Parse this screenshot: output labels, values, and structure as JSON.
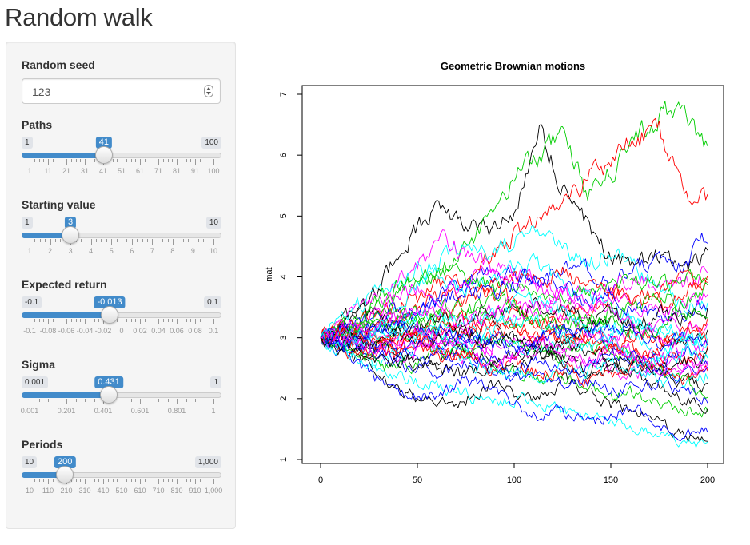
{
  "page": {
    "title": "Random walk"
  },
  "controls": {
    "seed": {
      "label": "Random seed",
      "value": "123"
    },
    "paths": {
      "label": "Paths",
      "min_label": "1",
      "max_label": "100",
      "value_label": "41",
      "min": 1,
      "max": 100,
      "value": 41,
      "grid": [
        "1",
        "11",
        "21",
        "31",
        "41",
        "51",
        "61",
        "71",
        "81",
        "91",
        "100"
      ]
    },
    "starting": {
      "label": "Starting value",
      "min_label": "1",
      "max_label": "10",
      "value_label": "3",
      "min": 1,
      "max": 10,
      "value": 3,
      "grid": [
        "1",
        "2",
        "3",
        "4",
        "5",
        "6",
        "7",
        "8",
        "9",
        "10"
      ]
    },
    "expected": {
      "label": "Expected return",
      "min_label": "-0.1",
      "max_label": "0.1",
      "value_label": "-0.013",
      "min": -0.1,
      "max": 0.1,
      "value": -0.013,
      "grid": [
        "-0.1",
        "-0.08",
        "-0.06",
        "-0.04",
        "-0.02",
        "0",
        "0.02",
        "0.04",
        "0.06",
        "0.08",
        "0.1"
      ]
    },
    "sigma": {
      "label": "Sigma",
      "min_label": "0.001",
      "max_label": "1",
      "value_label": "0.431",
      "min": 0.001,
      "max": 1,
      "value": 0.431,
      "grid": [
        "0.001",
        "0.201",
        "0.401",
        "0.601",
        "0.801",
        "1"
      ]
    },
    "periods": {
      "label": "Periods",
      "min_label": "10",
      "max_label": "1,000",
      "value_label": "200",
      "min": 10,
      "max": 1000,
      "value": 200,
      "grid": [
        "10",
        "110",
        "210",
        "310",
        "410",
        "510",
        "610",
        "710",
        "810",
        "910",
        "1,000"
      ]
    }
  },
  "chart_data": {
    "type": "line",
    "title": "Geometric Brownian motions",
    "xlabel": "",
    "ylabel": "mat",
    "xlim": [
      0,
      200
    ],
    "ylim": [
      1,
      7
    ],
    "x_ticks": [
      "0",
      "50",
      "100",
      "150",
      "200"
    ],
    "y_ticks": [
      "1",
      "2",
      "3",
      "4",
      "5",
      "6",
      "7"
    ],
    "n_paths": 41,
    "start_value": 3,
    "periods": 200,
    "colors": [
      "#000000",
      "#df536b",
      "#61d04f",
      "#2297e6",
      "#28e2e5",
      "#cd0bbc",
      "#f5c710",
      "#9e9e9e"
    ],
    "plot_colors": [
      "#000000",
      "#ff0000",
      "#00cd00",
      "#0000ff",
      "#00ffff",
      "#ff00ff"
    ],
    "series": [
      {
        "color": "#000000",
        "values": [
          3,
          3.3,
          3.6,
          4.2,
          4.8,
          5.2,
          4.9,
          4.7,
          5.0,
          6.45,
          5.5,
          4.9,
          4.3,
          4.2,
          4.4,
          4.1,
          4.4
        ]
      },
      {
        "color": "#00cd00",
        "values": [
          3,
          3.2,
          3.4,
          3.7,
          3.9,
          4.1,
          4.5,
          5.0,
          5.6,
          6.0,
          6.3,
          5.4,
          5.7,
          6.3,
          6.6,
          6.85,
          6.05
        ]
      },
      {
        "color": "#ff0000",
        "values": [
          3,
          3.1,
          3.3,
          3.5,
          3.6,
          3.9,
          4.0,
          4.3,
          4.7,
          5.0,
          5.2,
          5.6,
          5.9,
          6.3,
          6.4,
          5.4,
          5.3
        ]
      },
      {
        "color": "#00ffff",
        "values": [
          3,
          2.9,
          3.1,
          3.4,
          3.9,
          4.3,
          4.6,
          4.4,
          4.6,
          4.8,
          4.5,
          4.2,
          4.4,
          4.1,
          3.8,
          3.6,
          3.5
        ]
      },
      {
        "color": "#0000ff",
        "values": [
          3,
          3.1,
          3.3,
          3.2,
          3.4,
          3.7,
          3.9,
          4.1,
          4.0,
          3.9,
          4.2,
          4.1,
          3.9,
          4.1,
          4.3,
          4.2,
          4.7
        ]
      },
      {
        "color": "#ff00ff",
        "values": [
          3,
          3.3,
          3.5,
          3.8,
          4.2,
          4.6,
          4.4,
          4.2,
          4.1,
          3.9,
          3.8,
          3.7,
          3.9,
          4.0,
          3.8,
          3.9,
          4.1
        ]
      },
      {
        "color": "#000000",
        "values": [
          3,
          2.8,
          2.5,
          2.2,
          2.0,
          1.9,
          2.0,
          2.2,
          2.1,
          2.0,
          2.3,
          2.1,
          1.9,
          1.8,
          1.6,
          1.4,
          1.3
        ]
      },
      {
        "color": "#ff0000",
        "values": [
          3,
          3.2,
          3.0,
          2.8,
          2.9,
          3.1,
          3.3,
          3.2,
          3.4,
          3.2,
          3.3,
          3.5,
          3.7,
          3.6,
          3.8,
          3.9,
          3.8
        ]
      },
      {
        "color": "#00ffff",
        "values": [
          3,
          2.8,
          2.6,
          2.4,
          2.3,
          2.2,
          2.1,
          1.9,
          2.0,
          1.9,
          1.8,
          1.7,
          1.6,
          1.5,
          1.4,
          1.3,
          1.2
        ]
      },
      {
        "color": "#0000ff",
        "values": [
          3,
          2.7,
          2.4,
          2.1,
          2.0,
          2.1,
          2.3,
          2.2,
          1.9,
          1.7,
          1.8,
          1.6,
          1.7,
          1.9,
          1.6,
          1.4,
          1.5
        ]
      },
      {
        "color": "#00cd00",
        "values": [
          3,
          3.1,
          2.9,
          3.0,
          3.2,
          3.0,
          2.8,
          2.6,
          2.5,
          2.3,
          2.4,
          2.2,
          2.0,
          2.1,
          1.9,
          1.8,
          1.8
        ]
      },
      {
        "color": "#ff00ff",
        "values": [
          3,
          2.9,
          3.1,
          3.3,
          3.0,
          2.8,
          2.6,
          2.8,
          3.0,
          2.9,
          2.7,
          2.6,
          2.5,
          2.4,
          2.6,
          2.5,
          2.7
        ]
      },
      {
        "color": "#000000",
        "values": [
          3,
          3.2,
          3.4,
          3.3,
          3.1,
          2.9,
          3.0,
          3.2,
          3.1,
          2.9,
          2.7,
          2.5,
          2.6,
          2.4,
          2.2,
          2.0,
          1.9
        ]
      },
      {
        "color": "#ff0000",
        "values": [
          3,
          2.8,
          2.7,
          2.9,
          3.1,
          3.4,
          3.6,
          3.8,
          3.5,
          3.3,
          3.1,
          3.0,
          2.8,
          2.7,
          2.9,
          3.1,
          3.3
        ]
      },
      {
        "color": "#00ffff",
        "values": [
          3,
          3.3,
          3.7,
          3.9,
          4.1,
          4.0,
          3.8,
          3.9,
          4.1,
          4.2,
          3.9,
          3.7,
          3.5,
          3.3,
          3.2,
          3.0,
          2.9
        ]
      },
      {
        "color": "#0000ff",
        "values": [
          3,
          2.9,
          2.8,
          2.6,
          2.5,
          2.4,
          2.6,
          2.5,
          2.3,
          2.4,
          2.2,
          2.3,
          2.1,
          2.2,
          2.3,
          2.1,
          2.0
        ]
      },
      {
        "color": "#00cd00",
        "values": [
          3,
          3.2,
          3.5,
          3.8,
          4.0,
          4.1,
          4.0,
          3.8,
          3.9,
          3.7,
          3.6,
          3.8,
          3.9,
          4.0,
          3.8,
          3.9,
          4.0
        ]
      },
      {
        "color": "#ff00ff",
        "values": [
          3,
          3.1,
          2.9,
          2.7,
          2.8,
          3.0,
          3.2,
          3.4,
          3.3,
          3.5,
          3.4,
          3.2,
          3.0,
          2.8,
          2.7,
          2.6,
          2.5
        ]
      },
      {
        "color": "#000000",
        "values": [
          3,
          2.9,
          3.0,
          2.8,
          2.6,
          2.7,
          2.8,
          2.6,
          2.5,
          2.7,
          2.6,
          2.4,
          2.5,
          2.6,
          2.4,
          2.3,
          2.2
        ]
      },
      {
        "color": "#ff0000",
        "values": [
          3,
          3.2,
          3.1,
          3.3,
          3.5,
          3.7,
          3.6,
          3.8,
          4.0,
          3.9,
          4.1,
          3.9,
          3.8,
          3.6,
          3.5,
          3.7,
          3.9
        ]
      },
      {
        "color": "#00ffff",
        "values": [
          3,
          2.8,
          2.6,
          2.7,
          2.9,
          2.8,
          2.6,
          2.5,
          2.4,
          2.3,
          2.5,
          2.4,
          2.6,
          2.5,
          2.3,
          2.2,
          2.4
        ]
      },
      {
        "color": "#0000ff",
        "values": [
          3,
          3.1,
          3.3,
          3.5,
          3.4,
          3.6,
          3.8,
          3.7,
          3.9,
          4.0,
          3.8,
          3.6,
          3.7,
          3.5,
          3.3,
          3.4,
          3.6
        ]
      },
      {
        "color": "#00cd00",
        "values": [
          3,
          2.9,
          2.7,
          2.5,
          2.6,
          2.8,
          2.7,
          2.9,
          3.0,
          2.8,
          2.7,
          2.9,
          2.8,
          2.6,
          2.5,
          2.3,
          2.1
        ]
      },
      {
        "color": "#ff00ff",
        "values": [
          3,
          3.2,
          3.4,
          3.6,
          3.8,
          3.7,
          3.9,
          4.1,
          4.0,
          3.8,
          3.6,
          3.5,
          3.7,
          3.6,
          3.4,
          3.5,
          3.7
        ]
      },
      {
        "color": "#000000",
        "values": [
          3,
          3.0,
          3.2,
          3.1,
          2.9,
          3.1,
          3.3,
          3.5,
          3.4,
          3.6,
          3.5,
          3.3,
          3.4,
          3.2,
          3.0,
          2.9,
          3.1
        ]
      },
      {
        "color": "#ff0000",
        "values": [
          3,
          2.9,
          2.8,
          3.0,
          2.9,
          2.7,
          2.8,
          3.0,
          3.2,
          3.0,
          2.9,
          3.1,
          3.0,
          2.8,
          2.7,
          2.6,
          2.8
        ]
      },
      {
        "color": "#00ffff",
        "values": [
          3,
          3.1,
          3.0,
          3.2,
          3.4,
          3.3,
          3.1,
          3.0,
          2.8,
          2.7,
          2.9,
          3.1,
          3.2,
          3.0,
          2.8,
          2.9,
          3.0
        ]
      },
      {
        "color": "#0000ff",
        "values": [
          3,
          3.0,
          2.8,
          2.7,
          2.9,
          3.1,
          3.0,
          2.9,
          2.8,
          3.0,
          3.2,
          3.1,
          2.9,
          2.7,
          2.6,
          2.8,
          2.6
        ]
      },
      {
        "color": "#00cd00",
        "values": [
          3,
          3.1,
          3.3,
          3.2,
          3.4,
          3.3,
          3.5,
          3.4,
          3.2,
          3.3,
          3.1,
          3.2,
          3.4,
          3.5,
          3.7,
          3.6,
          3.8
        ]
      },
      {
        "color": "#ff00ff",
        "values": [
          3,
          2.9,
          3.1,
          2.9,
          2.8,
          2.9,
          3.0,
          2.8,
          2.7,
          2.9,
          2.8,
          3.0,
          2.9,
          3.1,
          3.0,
          2.8,
          2.9
        ]
      },
      {
        "color": "#000000",
        "values": [
          3,
          3.1,
          2.9,
          3.0,
          3.2,
          3.3,
          3.1,
          2.9,
          3.0,
          2.8,
          2.9,
          3.1,
          3.3,
          3.2,
          3.4,
          3.3,
          3.5
        ]
      },
      {
        "color": "#ff0000",
        "values": [
          3,
          3.0,
          3.1,
          2.9,
          3.0,
          3.2,
          3.1,
          3.3,
          3.2,
          3.0,
          3.1,
          2.9,
          2.8,
          3.0,
          2.9,
          3.1,
          3.0
        ]
      },
      {
        "color": "#00ffff",
        "values": [
          3,
          2.8,
          2.9,
          3.1,
          3.0,
          3.2,
          3.4,
          3.3,
          3.5,
          3.6,
          3.4,
          3.2,
          3.1,
          3.3,
          3.2,
          3.0,
          2.8
        ]
      },
      {
        "color": "#0000ff",
        "values": [
          3,
          3.1,
          3.0,
          2.8,
          2.7,
          2.6,
          2.8,
          2.7,
          2.5,
          2.6,
          2.4,
          2.5,
          2.7,
          2.6,
          2.5,
          2.4,
          2.6
        ]
      },
      {
        "color": "#00cd00",
        "values": [
          3,
          3.0,
          3.2,
          3.4,
          3.3,
          3.5,
          3.4,
          3.6,
          3.5,
          3.3,
          3.2,
          3.4,
          3.3,
          3.1,
          3.2,
          3.4,
          3.3
        ]
      },
      {
        "color": "#ff00ff",
        "values": [
          3,
          3.2,
          3.1,
          3.3,
          3.5,
          3.4,
          3.2,
          3.4,
          3.6,
          3.5,
          3.7,
          3.6,
          3.4,
          3.2,
          3.3,
          3.1,
          3.2
        ]
      },
      {
        "color": "#000000",
        "values": [
          3,
          2.9,
          2.7,
          2.6,
          2.7,
          2.5,
          2.4,
          2.6,
          2.8,
          2.7,
          2.9,
          2.8,
          2.6,
          2.7,
          2.5,
          2.6,
          2.7
        ]
      },
      {
        "color": "#ff0000",
        "values": [
          3,
          3.1,
          2.9,
          2.8,
          3.0,
          2.8,
          2.7,
          2.5,
          2.6,
          2.4,
          2.5,
          2.3,
          2.4,
          2.6,
          2.5,
          2.3,
          2.5
        ]
      },
      {
        "color": "#00ffff",
        "values": [
          3,
          3.0,
          3.1,
          3.3,
          3.2,
          3.0,
          2.9,
          3.1,
          3.3,
          3.2,
          3.0,
          2.8,
          2.9,
          2.7,
          2.6,
          2.8,
          2.7
        ]
      },
      {
        "color": "#0000ff",
        "values": [
          3,
          2.9,
          3.0,
          3.2,
          3.1,
          2.9,
          3.1,
          3.0,
          2.8,
          2.9,
          3.1,
          3.0,
          3.2,
          3.1,
          2.9,
          3.0,
          2.8
        ]
      },
      {
        "color": "#ff00ff",
        "values": [
          3,
          3.0,
          2.8,
          2.9,
          3.1,
          3.0,
          2.8,
          2.6,
          2.7,
          2.9,
          2.7,
          2.6,
          2.8,
          2.7,
          2.5,
          2.4,
          2.6
        ]
      }
    ]
  }
}
